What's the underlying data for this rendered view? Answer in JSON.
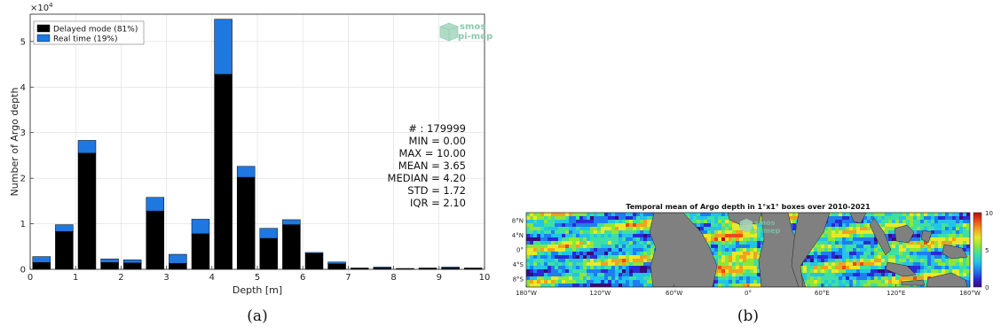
{
  "chart_data": [
    {
      "type": "bar",
      "stacked": true,
      "caption": "(a)",
      "xlabel": "Depth [m]",
      "ylabel": "Number of Argo depth",
      "y_multiplier_label": "×10",
      "y_multiplier_exp": "4",
      "xlim": [
        0,
        10
      ],
      "ylim": [
        0,
        56000
      ],
      "x_ticks": [
        "0",
        "1",
        "2",
        "3",
        "4",
        "5",
        "6",
        "7",
        "8",
        "9",
        "10"
      ],
      "y_ticks": [
        {
          "value": 0,
          "label": "0"
        },
        {
          "value": 10000,
          "label": "1"
        },
        {
          "value": 20000,
          "label": "2"
        },
        {
          "value": 30000,
          "label": "3"
        },
        {
          "value": 40000,
          "label": "4"
        },
        {
          "value": 50000,
          "label": "5"
        }
      ],
      "grid": true,
      "legend_position": "top-left",
      "bar_centers": [
        0.25,
        0.75,
        1.25,
        1.75,
        2.25,
        2.75,
        3.25,
        3.75,
        4.25,
        4.75,
        5.25,
        5.75,
        6.25,
        6.75,
        7.25,
        7.75,
        8.25,
        8.75,
        9.25,
        9.75
      ],
      "series": [
        {
          "name": "Delayed mode (81%)",
          "color": "#000000",
          "values": [
            1500,
            8300,
            25500,
            1500,
            1400,
            12800,
            1300,
            7800,
            42800,
            20200,
            6800,
            9800,
            3500,
            1200,
            200,
            300,
            100,
            200,
            300,
            200
          ]
        },
        {
          "name": "Real time (19%)",
          "color": "#1f77e0",
          "values": [
            1300,
            1500,
            2800,
            800,
            700,
            3000,
            2000,
            3200,
            12100,
            2400,
            2200,
            1100,
            200,
            400,
            100,
            200,
            100,
            100,
            200,
            100
          ]
        }
      ],
      "stats": [
        "# : 179999",
        "MIN = 0.00",
        "MAX = 10.00",
        "MEAN = 3.65",
        "MEDIAN = 4.20",
        "STD = 1.72",
        "IQR = 2.10"
      ],
      "watermark": [
        "smos",
        "pi-mep"
      ]
    },
    {
      "type": "heatmap",
      "caption": "(b)",
      "title": "Temporal mean of Argo depth in 1°x1° boxes over 2010-2021",
      "x_ticks": [
        "180°W",
        "120°W",
        "60°W",
        "0°",
        "60°E",
        "120°E",
        "180°W"
      ],
      "y_ticks": [
        "8°N",
        "4°N",
        "0°",
        "4°S",
        "8°S"
      ],
      "colorbar_ticks": [
        "10",
        "5",
        "0"
      ],
      "colorbar_range": [
        0,
        10
      ],
      "colormap": [
        "#3a0a7e",
        "#2a2bd6",
        "#1e7ef0",
        "#22c4e8",
        "#3ee0a0",
        "#8ee63a",
        "#e8e82a",
        "#f4a020",
        "#ec4a18",
        "#b01010"
      ],
      "land_color": "#808080",
      "watermark": [
        "smos",
        "pi-mep"
      ]
    }
  ]
}
